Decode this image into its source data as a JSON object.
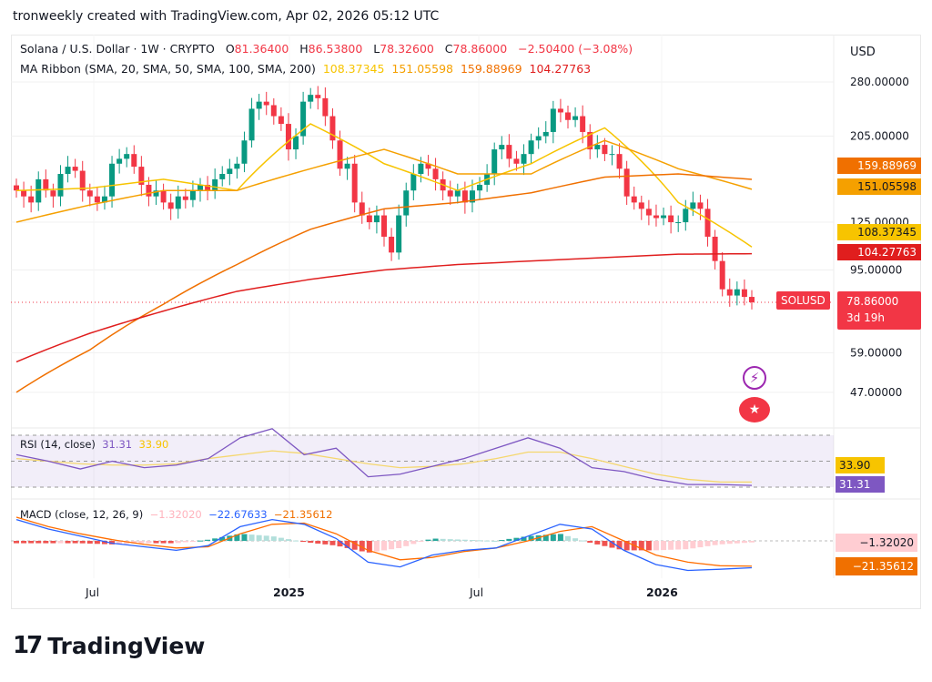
{
  "header": {
    "title": "tronweekly created with TradingView.com, Apr 02, 2026 05:12 UTC"
  },
  "legend": {
    "symbol": "Solana / U.S. Dollar · 1W · CRYPTO",
    "o_label": "O",
    "o": "81.36400",
    "h_label": "H",
    "h": "86.53800",
    "l_label": "L",
    "l": "78.32600",
    "c_label": "C",
    "c": "78.86000",
    "change": "−2.50400 (−3.08%)",
    "ma_title": "MA Ribbon (SMA, 20, SMA, 50, SMA, 100, SMA, 200)",
    "ma_values": [
      "108.37345",
      "151.05598",
      "159.88969",
      "104.27763"
    ]
  },
  "currency": "USD",
  "price_axis": {
    "ticks": [
      "280.00000",
      "205.00000",
      "125.00000",
      "95.00000",
      "59.00000",
      "47.00000"
    ],
    "badges": {
      "sma100": "159.88969",
      "sma50": "151.05598",
      "sma20": "108.37345",
      "sma200": "104.27763",
      "last": "78.86000",
      "countdown": "3d 19h",
      "symbol": "SOLUSD"
    }
  },
  "rsi": {
    "title": "RSI (14, close)",
    "value": "31.31",
    "ma_value": "33.90"
  },
  "macd": {
    "title": "MACD (close, 12, 26, 9)",
    "hist": "−1.32020",
    "macd": "−22.67633",
    "signal": "−21.35612",
    "axis_hist": "−1.32020",
    "axis_signal": "−21.35612"
  },
  "time_axis": [
    "Jul",
    "2025",
    "Jul",
    "2026"
  ],
  "brand": "TradingView",
  "colors": {
    "up": "#089981",
    "down": "#f23645",
    "sma20": "#f7c400",
    "sma50": "#f5a000",
    "sma100": "#f07000",
    "sma200": "#e01e1e",
    "rsi": "#7e57c2",
    "macd": "#2962ff",
    "signal": "#ff6d00"
  },
  "chart_data": {
    "type": "candlestick",
    "title": "Solana / U.S. Dollar · 1W · CRYPTO",
    "scale": "log",
    "ylim": [
      40,
      300
    ],
    "closes": [
      150,
      145,
      140,
      160,
      150,
      145,
      165,
      172,
      168,
      150,
      145,
      140,
      145,
      175,
      180,
      185,
      172,
      155,
      145,
      150,
      140,
      135,
      145,
      142,
      150,
      155,
      150,
      160,
      165,
      170,
      175,
      200,
      240,
      250,
      245,
      230,
      220,
      190,
      205,
      250,
      260,
      255,
      230,
      200,
      170,
      175,
      140,
      130,
      125,
      130,
      115,
      105,
      130,
      150,
      165,
      175,
      170,
      160,
      150,
      145,
      150,
      140,
      150,
      155,
      165,
      190,
      195,
      180,
      175,
      185,
      200,
      205,
      210,
      240,
      235,
      225,
      230,
      210,
      190,
      195,
      185,
      185,
      170,
      145,
      140,
      135,
      130,
      128,
      130,
      125,
      125,
      135,
      140,
      135,
      115,
      100,
      85,
      82,
      85,
      81.36,
      78.86
    ],
    "sma_sampled_every_10_weeks": {
      "sma20": [
        150,
        152,
        160,
        150,
        220,
        175,
        150,
        175,
        215,
        140,
        108.37
      ],
      "sma50": [
        125,
        138,
        150,
        150,
        170,
        190,
        165,
        165,
        200,
        170,
        151.06
      ],
      "sma100": [
        47,
        60,
        78,
        98,
        120,
        135,
        140,
        148,
        162,
        165,
        159.89
      ],
      "sma200": [
        56,
        66,
        75,
        84,
        90,
        95,
        98,
        100,
        102,
        104,
        104.28
      ]
    },
    "rsi": [
      55,
      50,
      44,
      50,
      45,
      47,
      52,
      68,
      75,
      55,
      60,
      38,
      40,
      46,
      52,
      60,
      68,
      60,
      45,
      42,
      36,
      32,
      32,
      31.31
    ],
    "rsi_ma": [
      52,
      50,
      48,
      47,
      47,
      48,
      52,
      55,
      58,
      56,
      52,
      48,
      45,
      46,
      48,
      52,
      57,
      57,
      52,
      46,
      40,
      36,
      34,
      33.9
    ],
    "macd": [
      18,
      10,
      4,
      -2,
      -5,
      -8,
      -4,
      12,
      18,
      14,
      2,
      -18,
      -22,
      -12,
      -8,
      -6,
      4,
      14,
      10,
      -8,
      -20,
      -25,
      -24,
      -22.68
    ],
    "signal": [
      20,
      12,
      6,
      1,
      -3,
      -6,
      -5,
      6,
      14,
      15,
      6,
      -8,
      -16,
      -14,
      -9,
      -6,
      0,
      8,
      12,
      0,
      -12,
      -18,
      -21,
      -21.36
    ],
    "xtick_labels": [
      "Jul",
      "2025",
      "Jul",
      "2026"
    ]
  }
}
